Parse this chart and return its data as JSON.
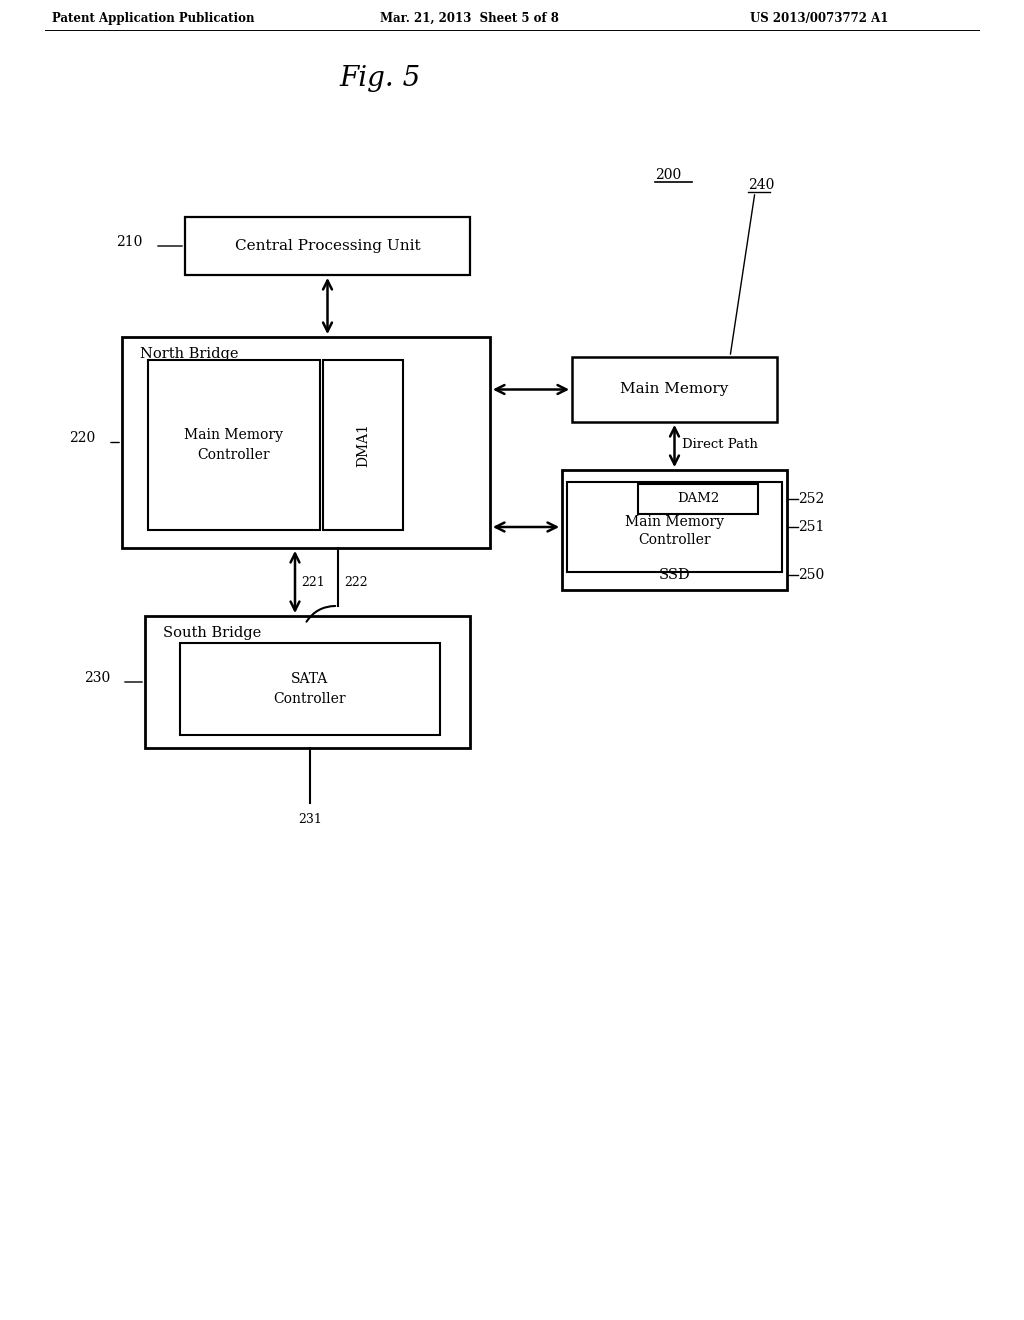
{
  "bg_color": "#ffffff",
  "header_left": "Patent Application Publication",
  "header_mid": "Mar. 21, 2013  Sheet 5 of 8",
  "header_right": "US 2013/0073772 A1",
  "fig_title": "Fig. 5",
  "label_200": "200",
  "label_210": "210",
  "label_220": "220",
  "label_221": "221",
  "label_222": "222",
  "label_230": "230",
  "label_231": "231",
  "label_240": "240",
  "label_250": "250",
  "label_251": "251",
  "label_252": "252",
  "text_cpu": "Central Processing Unit",
  "text_nb": "North Bridge",
  "text_mmc1": "Main Memory\nController",
  "text_dma1": "DMA1",
  "text_mm": "Main Memory",
  "text_direct": "Direct Path",
  "text_dam2": "DAM2",
  "text_mmc2": "Main Memory\nController",
  "text_ssd": "SSD",
  "text_sb": "South Bridge",
  "text_sata": "SATA\nController"
}
